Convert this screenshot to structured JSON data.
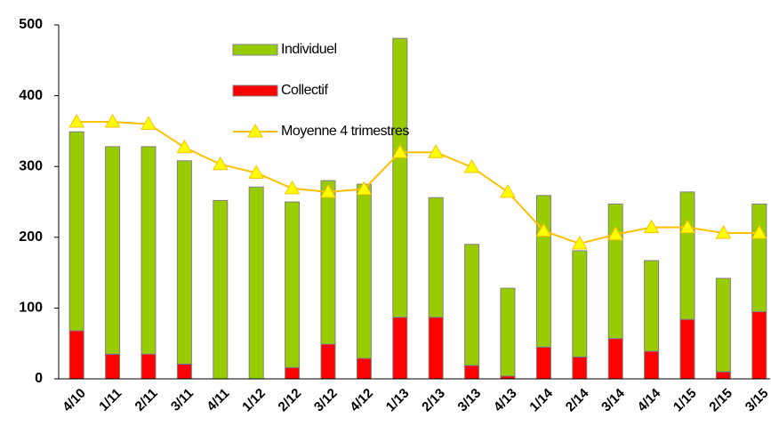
{
  "chart_data": {
    "type": "bar",
    "categories": [
      "4/10",
      "1/11",
      "2/11",
      "3/11",
      "4/11",
      "1/12",
      "2/12",
      "3/12",
      "4/12",
      "1/13",
      "2/13",
      "3/13",
      "4/13",
      "1/14",
      "2/14",
      "3/14",
      "4/14",
      "1/15",
      "2/15",
      "3/15"
    ],
    "series": [
      {
        "name": "Collectif",
        "color": "#ff0000",
        "values": [
          68,
          35,
          35,
          21,
          0,
          0,
          16,
          49,
          29,
          87,
          87,
          19,
          4,
          45,
          31,
          57,
          39,
          84,
          10,
          95
        ]
      },
      {
        "name": "Individuel",
        "color": "#99cc00",
        "values": [
          281,
          293,
          293,
          287,
          252,
          271,
          234,
          231,
          246,
          394,
          169,
          171,
          124,
          214,
          150,
          190,
          128,
          180,
          132,
          152
        ]
      },
      {
        "name": "Moyenne 4 trimestres",
        "type": "line",
        "color": "#ffc000",
        "marker_color": "#ffff00",
        "values": [
          363,
          363,
          360,
          327,
          303,
          291,
          269,
          264,
          268,
          320,
          320,
          299,
          264,
          209,
          191,
          204,
          214,
          214,
          206,
          206
        ]
      }
    ],
    "stacked": true,
    "ylim": [
      0,
      500
    ],
    "yticks": [
      0,
      100,
      200,
      300,
      400,
      500
    ],
    "grid": false
  }
}
